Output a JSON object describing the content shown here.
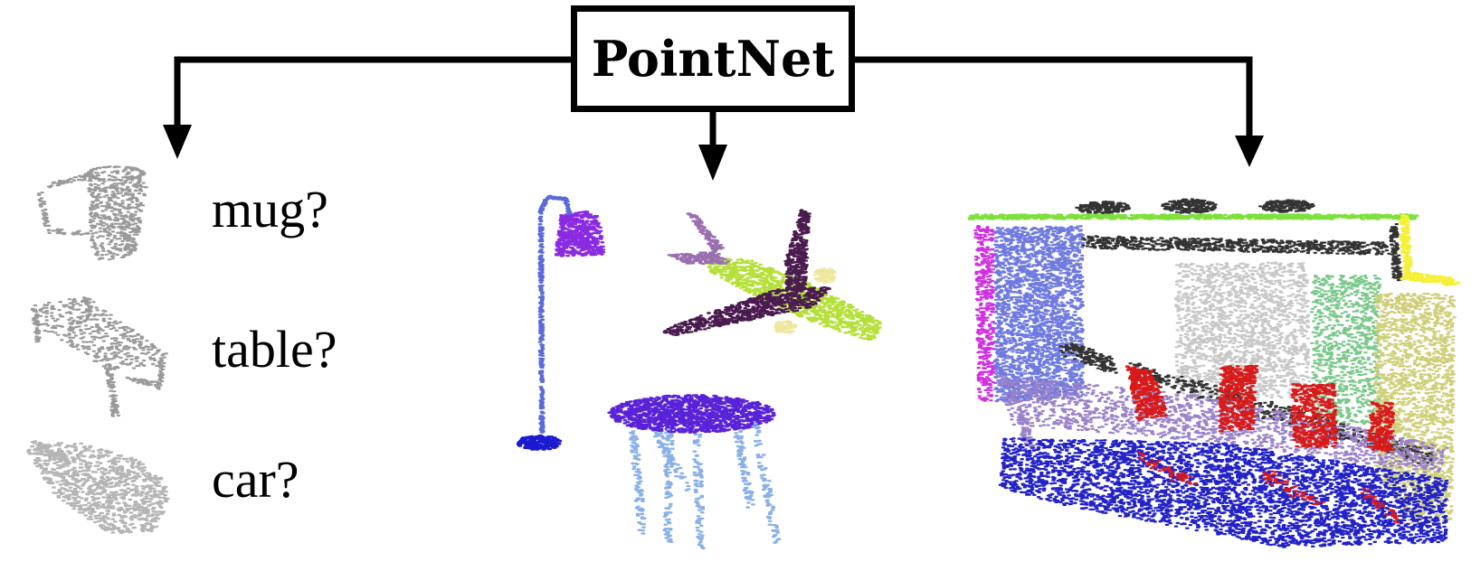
{
  "title": "PointNet",
  "labels": [
    "mug?",
    "table?",
    "car?"
  ],
  "sections": {
    "classification": {
      "icon": "point-cloud-objects"
    },
    "part_segmentation": {
      "icon": "point-cloud-parts"
    },
    "semantic_segmentation": {
      "icon": "point-cloud-room"
    }
  },
  "colors": {
    "gray_cloud": "#9a9a9a",
    "lamp_shade": "#8a2be2",
    "lamp_pole": "#5a6ad8",
    "lamp_base": "#1a1ad0",
    "plane_body": "#b5e03a",
    "plane_wings": "#4a1b4f",
    "plane_tail": "#9a6fb0",
    "plane_engine": "#efe7a0",
    "table_top": "#5a22d8",
    "table_legs": "#8ab0e8",
    "room_ceiling": "#7ee03a",
    "room_wall_left": "#6f7ae0",
    "room_wall_mid": "#c8c8c8",
    "room_wall_right": "#cfcf7a",
    "room_door": "#7ac88a",
    "room_yellow": "#f5f03a",
    "room_magenta": "#d030e0",
    "room_floor": "#2222c8",
    "room_chair": "#d81a1a",
    "room_table": "#9a82c8",
    "room_dark": "#333333"
  }
}
